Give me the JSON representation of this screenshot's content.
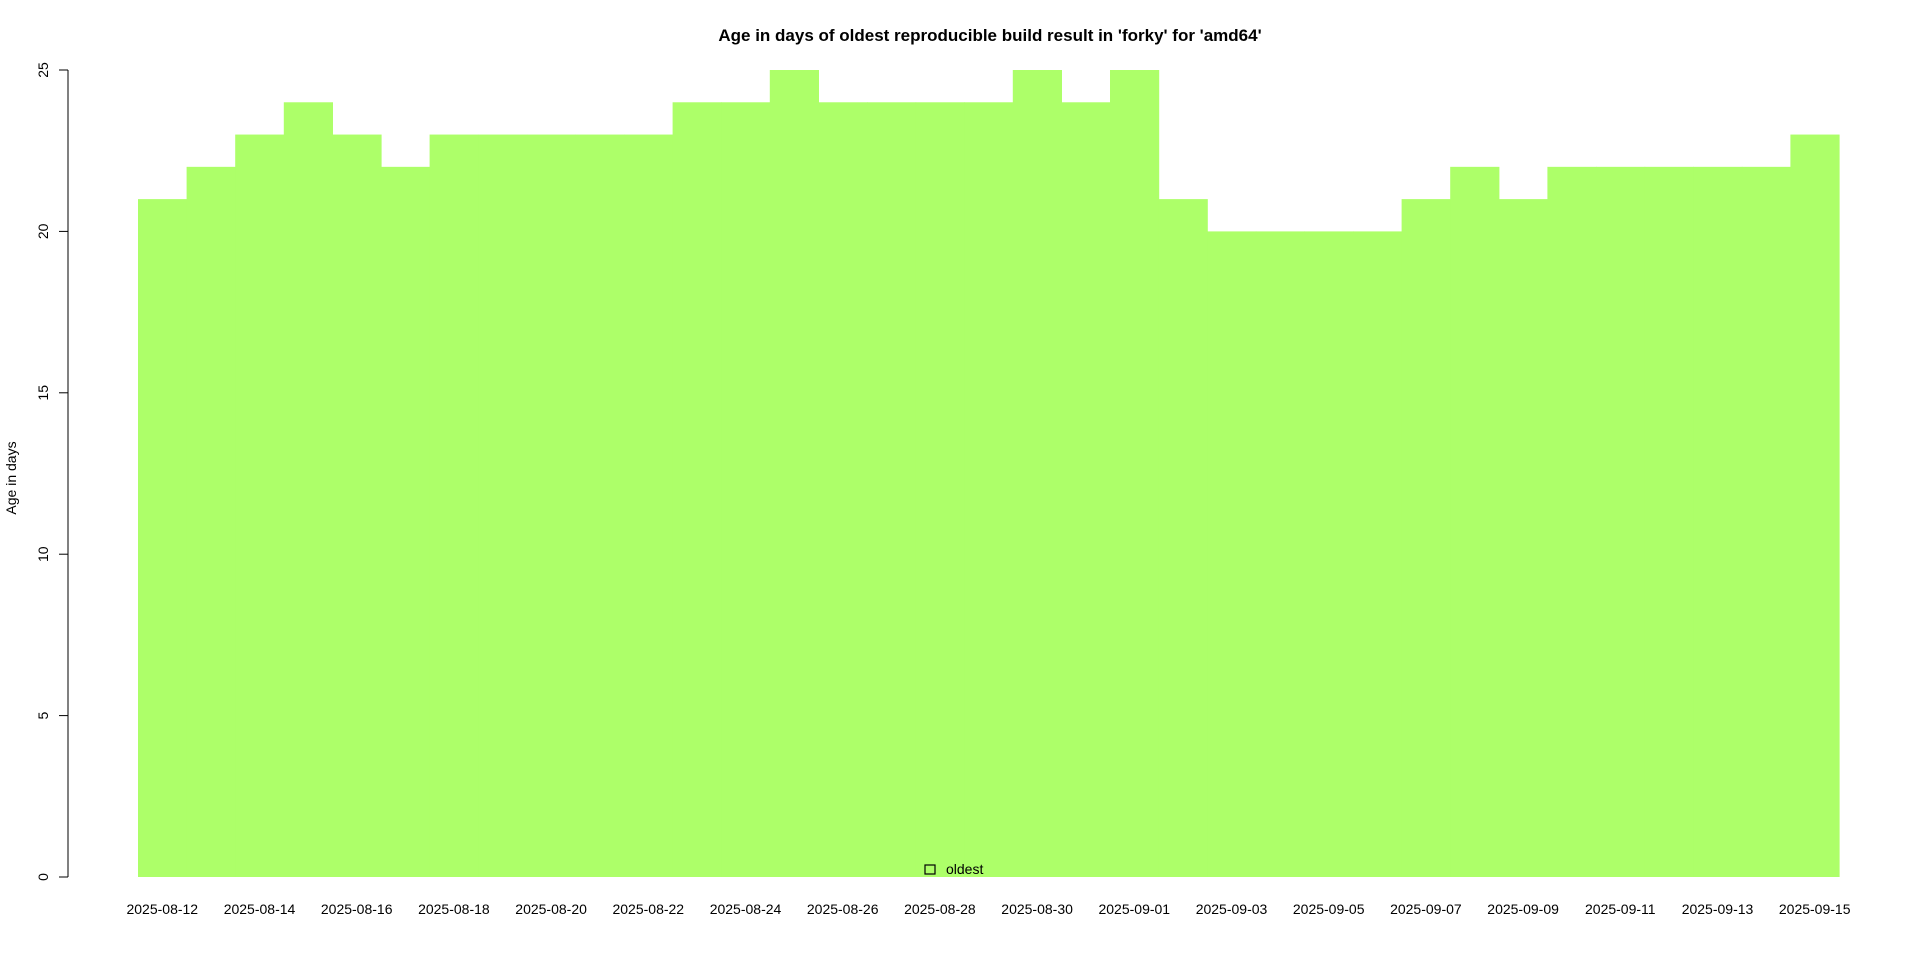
{
  "chart_data": {
    "type": "area",
    "title": "Age in days of oldest reproducible build result in 'forky' for 'amd64'",
    "xlabel": "",
    "ylabel": "Age in days",
    "ylim": [
      0,
      25
    ],
    "y_ticks": [
      0,
      5,
      10,
      15,
      20,
      25
    ],
    "x_tick_labels": [
      "2025-08-12",
      "2025-08-14",
      "2025-08-16",
      "2025-08-18",
      "2025-08-20",
      "2025-08-22",
      "2025-08-24",
      "2025-08-26",
      "2025-08-28",
      "2025-08-30",
      "2025-09-01",
      "2025-09-03",
      "2025-09-05",
      "2025-09-07",
      "2025-09-09",
      "2025-09-11",
      "2025-09-13",
      "2025-09-15"
    ],
    "grid": false,
    "legend_position": "bottom-center",
    "series": [
      {
        "name": "oldest",
        "color": "#adff69",
        "x": [
          "2025-08-12",
          "2025-08-13",
          "2025-08-14",
          "2025-08-15",
          "2025-08-16",
          "2025-08-17",
          "2025-08-18",
          "2025-08-19",
          "2025-08-20",
          "2025-08-21",
          "2025-08-22",
          "2025-08-23",
          "2025-08-24",
          "2025-08-25",
          "2025-08-26",
          "2025-08-27",
          "2025-08-28",
          "2025-08-29",
          "2025-08-30",
          "2025-08-31",
          "2025-09-01",
          "2025-09-02",
          "2025-09-03",
          "2025-09-04",
          "2025-09-05",
          "2025-09-06",
          "2025-09-07",
          "2025-09-08",
          "2025-09-09",
          "2025-09-10",
          "2025-09-11",
          "2025-09-12",
          "2025-09-13",
          "2025-09-14",
          "2025-09-15"
        ],
        "values": [
          21,
          22,
          23,
          24,
          23,
          22,
          23,
          23,
          23,
          23,
          23,
          24,
          24,
          25,
          24,
          24,
          24,
          24,
          25,
          24,
          25,
          21,
          20,
          20,
          20,
          20,
          21,
          22,
          21,
          22,
          22,
          22,
          22,
          22,
          23
        ]
      }
    ]
  }
}
